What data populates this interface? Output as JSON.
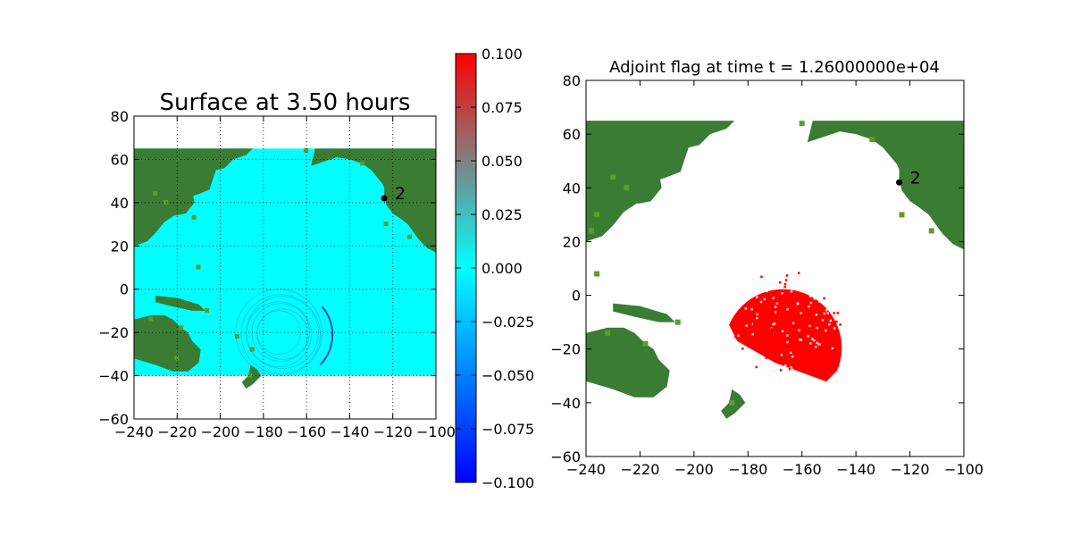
{
  "chart_data": [
    {
      "type": "heatmap",
      "title": "Surface at 3.50 hours",
      "xlim": [
        -240,
        -100
      ],
      "ylim": [
        -60,
        80
      ],
      "xticks": [
        -240,
        -220,
        -200,
        -180,
        -160,
        -140,
        -120,
        -100
      ],
      "yticks": [
        -60,
        -40,
        -20,
        0,
        20,
        40,
        60,
        80
      ],
      "grid": true,
      "domain_extent": {
        "x": [
          -240,
          -100
        ],
        "y": [
          -40,
          65
        ]
      },
      "wave_ring": {
        "center": [
          -172,
          -20
        ],
        "radius": 20
      },
      "gauges": [
        {
          "label": "2",
          "x": -124,
          "y": 42
        }
      ],
      "colorbar": {
        "min": -0.1,
        "max": 0.1,
        "ticks": [
          "0.100",
          "0.075",
          "0.050",
          "0.025",
          "0.000",
          "−0.025",
          "−0.050",
          "−0.075",
          "−0.100"
        ]
      },
      "colors": {
        "water": "#00ffff",
        "land": "#3a7c34",
        "land_light": "#5a9e2c",
        "ring": "#2244bb"
      }
    },
    {
      "type": "heatmap",
      "title": "Adjoint flag at time t = 1.26000000e+04",
      "xlim": [
        -240,
        -100
      ],
      "ylim": [
        -60,
        80
      ],
      "xticks": [
        -240,
        -220,
        -200,
        -180,
        -160,
        -140,
        -120,
        -100
      ],
      "yticks": [
        -60,
        -40,
        -20,
        0,
        20,
        40,
        60,
        80
      ],
      "grid": false,
      "domain_extent": {
        "x": [
          -240,
          -100
        ],
        "y": [
          -40,
          65
        ]
      },
      "flagged_region": {
        "center": [
          -166,
          -10
        ],
        "radius": 20
      },
      "gauges": [
        {
          "label": "2",
          "x": -124,
          "y": 42
        }
      ],
      "colors": {
        "flag": "#ff0000",
        "land": "#3a7c34",
        "land_light": "#5a9e2c"
      }
    }
  ]
}
